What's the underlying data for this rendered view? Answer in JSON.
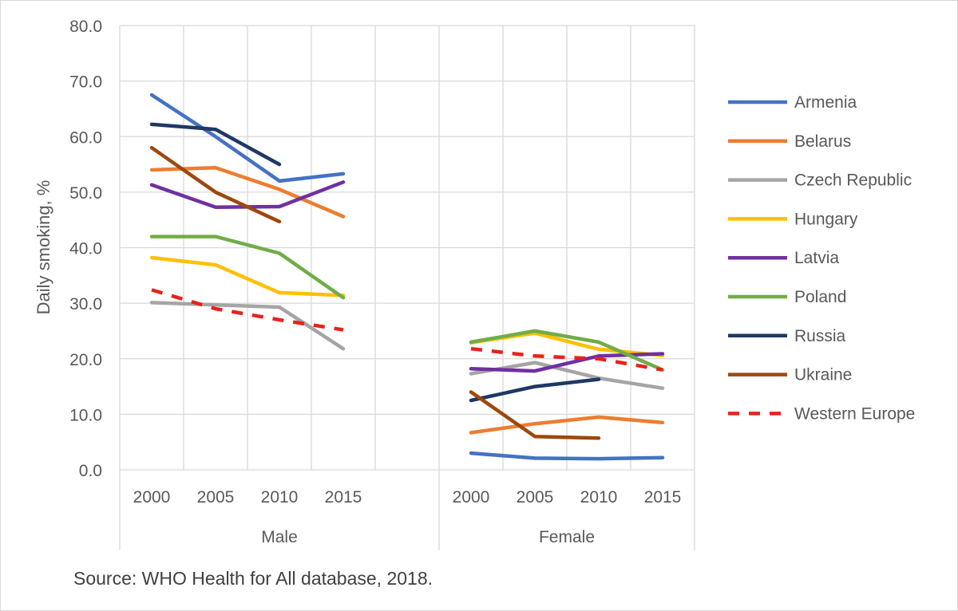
{
  "chart_data": {
    "type": "line",
    "ylabel": "Daily smoking,  %",
    "ylim": [
      0,
      80
    ],
    "ytick_step": 10,
    "ytick_labels": [
      "0.0",
      "10.0",
      "20.0",
      "30.0",
      "40.0",
      "50.0",
      "60.0",
      "70.0",
      "80.0"
    ],
    "grid": true,
    "legend_position": "right",
    "groups": [
      {
        "name": "Male",
        "categories": [
          "2000",
          "2005",
          "2010",
          "2015"
        ]
      },
      {
        "name": "Female",
        "categories": [
          "2000",
          "2005",
          "2010",
          "2015"
        ]
      }
    ],
    "series": [
      {
        "name": "Armenia",
        "color": "#4472c4",
        "dash": false,
        "male": [
          67.5,
          60.0,
          52.0,
          53.3
        ],
        "female": [
          3.0,
          2.1,
          2.0,
          2.2
        ]
      },
      {
        "name": "Belarus",
        "color": "#ed7d31",
        "dash": false,
        "male": [
          54.0,
          54.4,
          50.5,
          45.6
        ],
        "female": [
          6.7,
          8.3,
          9.5,
          8.5
        ]
      },
      {
        "name": "Czech Republic",
        "color": "#a5a5a5",
        "dash": false,
        "male": [
          30.1,
          29.7,
          29.3,
          21.8
        ],
        "female": [
          17.3,
          19.3,
          16.5,
          14.7
        ]
      },
      {
        "name": "Hungary",
        "color": "#ffc000",
        "dash": false,
        "male": [
          38.2,
          36.9,
          31.9,
          31.4
        ],
        "female": [
          22.9,
          24.6,
          21.7,
          20.6
        ]
      },
      {
        "name": "Latvia",
        "color": "#7030a0",
        "dash": false,
        "male": [
          51.3,
          47.3,
          47.4,
          51.8
        ],
        "female": [
          18.2,
          17.8,
          20.5,
          20.9
        ]
      },
      {
        "name": "Poland",
        "color": "#70ad47",
        "dash": false,
        "male": [
          42.0,
          42.0,
          39.0,
          31.0
        ],
        "female": [
          23.0,
          25.0,
          23.0,
          18.0
        ]
      },
      {
        "name": "Russia",
        "color": "#1f3864",
        "dash": false,
        "male": [
          62.2,
          61.3,
          55.0,
          null
        ],
        "female": [
          12.5,
          15.0,
          16.3,
          null
        ]
      },
      {
        "name": "Ukraine",
        "color": "#9e480e",
        "dash": false,
        "male": [
          58.0,
          50.0,
          44.7,
          null
        ],
        "female": [
          14.0,
          6.0,
          5.7,
          null
        ]
      },
      {
        "name": "Western Europe",
        "color": "#e8221b",
        "dash": true,
        "male": [
          32.4,
          29.0,
          27.0,
          25.2
        ],
        "female": [
          21.8,
          20.5,
          20.0,
          18.0
        ]
      }
    ]
  },
  "source": "Source: WHO Health for All database, 2018."
}
